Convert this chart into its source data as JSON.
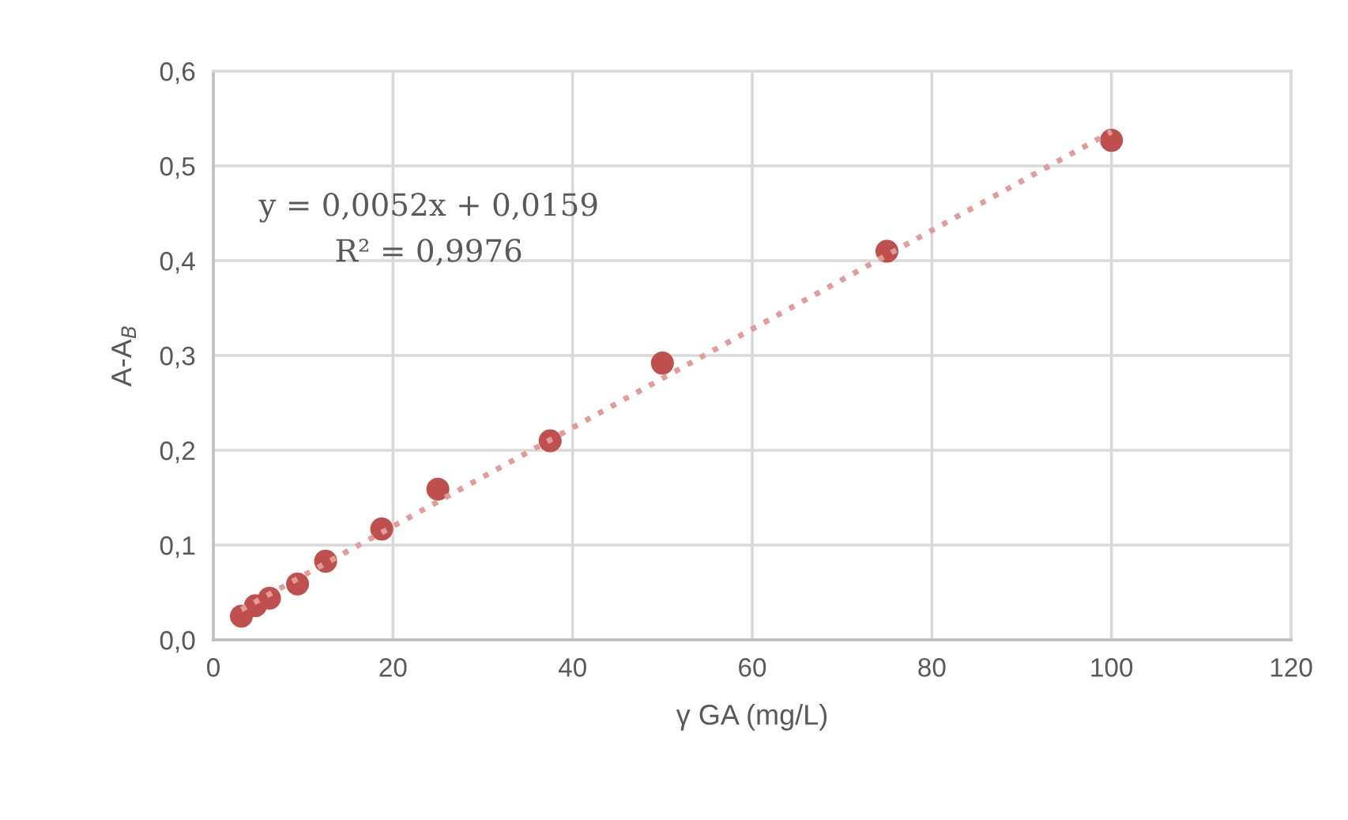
{
  "chart_data": {
    "type": "scatter",
    "xlabel": "γ GA (mg/L)",
    "ylabel": "A-A$_{B}$",
    "series": [
      {
        "color": "#c0504d",
        "marker": "circle",
        "x": [
          3.125,
          4.6875,
          6.25,
          9.375,
          12.5,
          18.75,
          25,
          37.5,
          50,
          75,
          100
        ],
        "values": [
          0.025,
          0.036,
          0.044,
          0.059,
          0.083,
          0.117,
          0.159,
          0.21,
          0.292,
          0.41,
          0.527
        ]
      },
      {
        "type": "line",
        "color": "#e39b99",
        "line_style": "dotted",
        "marker": "none",
        "x": [
          3.125,
          100
        ],
        "values": [
          0.032,
          0.536
        ]
      }
    ],
    "annotations": [
      "y = 0,0052x + 0,0159",
      "R² = 0,9976"
    ],
    "xlim": [
      0,
      120
    ],
    "xticks": [
      0,
      20,
      40,
      60,
      80,
      100,
      120
    ],
    "ylim": [
      0,
      0.6
    ],
    "yticks": [
      {
        "value": 0,
        "label": "0,0"
      },
      {
        "value": 0.1,
        "label": "0,1"
      },
      {
        "value": 0.2,
        "label": "0,2"
      },
      {
        "value": 0.3,
        "label": "0,3"
      },
      {
        "value": 0.4,
        "label": "0,4"
      },
      {
        "value": 0.5,
        "label": "0,5"
      },
      {
        "value": 0.6,
        "label": "0,6"
      }
    ],
    "grid": true,
    "legend": false
  }
}
